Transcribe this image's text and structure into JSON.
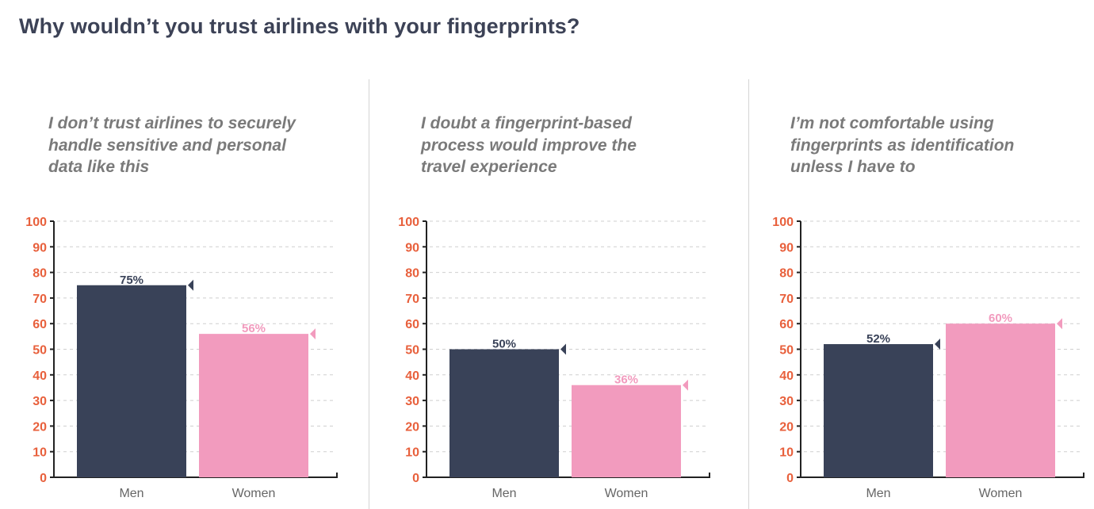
{
  "title": "Why wouldn’t you trust airlines with your fingerprints?",
  "colors": {
    "title": "#3c4256",
    "subtitle": "#7a7a7a",
    "tick_labels": "#e8603c",
    "men": "#394258",
    "women": "#f29bbe",
    "axis": "#222222",
    "grid": "#cfcfcf"
  },
  "chart_data": [
    {
      "type": "bar",
      "title": "I don’t trust airlines to securely handle sensitive and personal data like this",
      "title_lines": [
        "I don’t trust airlines to securely",
        "handle sensitive and personal",
        "data like this"
      ],
      "categories": [
        "Men",
        "Women"
      ],
      "values": [
        75,
        56
      ],
      "value_labels": [
        "75%",
        "56%"
      ],
      "ylim": [
        0,
        100
      ],
      "yticks": [
        0,
        10,
        20,
        30,
        40,
        50,
        60,
        70,
        80,
        90,
        100
      ],
      "grid": true
    },
    {
      "type": "bar",
      "title": "I doubt a fingerprint-based process would improve the travel experience",
      "title_lines": [
        "I doubt a fingerprint-based",
        "process would improve the",
        "travel experience"
      ],
      "categories": [
        "Men",
        "Women"
      ],
      "values": [
        50,
        36
      ],
      "value_labels": [
        "50%",
        "36%"
      ],
      "ylim": [
        0,
        100
      ],
      "yticks": [
        0,
        10,
        20,
        30,
        40,
        50,
        60,
        70,
        80,
        90,
        100
      ],
      "grid": true
    },
    {
      "type": "bar",
      "title": "I’m not comfortable using fingerprints as identification unless I have to",
      "title_lines": [
        "I’m not comfortable using",
        "fingerprints as identification",
        "unless I have to"
      ],
      "categories": [
        "Men",
        "Women"
      ],
      "values": [
        52,
        60
      ],
      "value_labels": [
        "52%",
        "60%"
      ],
      "ylim": [
        0,
        100
      ],
      "yticks": [
        0,
        10,
        20,
        30,
        40,
        50,
        60,
        70,
        80,
        90,
        100
      ],
      "grid": true
    }
  ]
}
